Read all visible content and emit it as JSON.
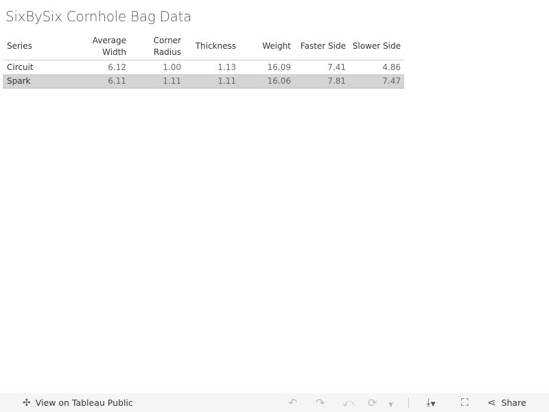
{
  "title": "SixBySix Cornhole Bag Data",
  "table": {
    "headers": [
      [
        "Series"
      ],
      [
        "Average",
        "Width"
      ],
      [
        "Corner",
        "Radius"
      ],
      [
        "Thickness"
      ],
      [
        "Weight"
      ],
      [
        "Faster Side"
      ],
      [
        "Slower Side"
      ]
    ],
    "rows": [
      [
        "Circuit",
        "6.12",
        "1.00",
        "1.13",
        "16.09",
        "7.41",
        "4.86"
      ],
      [
        "Spark",
        "6.11",
        "1.11",
        "1.11",
        "16.06",
        "7.81",
        "7.47"
      ]
    ],
    "selected_row": "Spark"
  },
  "toolbar": {
    "view_label": "View on Tableau Public",
    "share_label": "Share",
    "icons": [
      "tableau-logo-icon",
      "undo-icon",
      "redo-icon",
      "revert-icon",
      "refresh-icon",
      "dropdown-icon",
      "download-icon",
      "fullscreen-icon",
      "share-icon"
    ]
  }
}
